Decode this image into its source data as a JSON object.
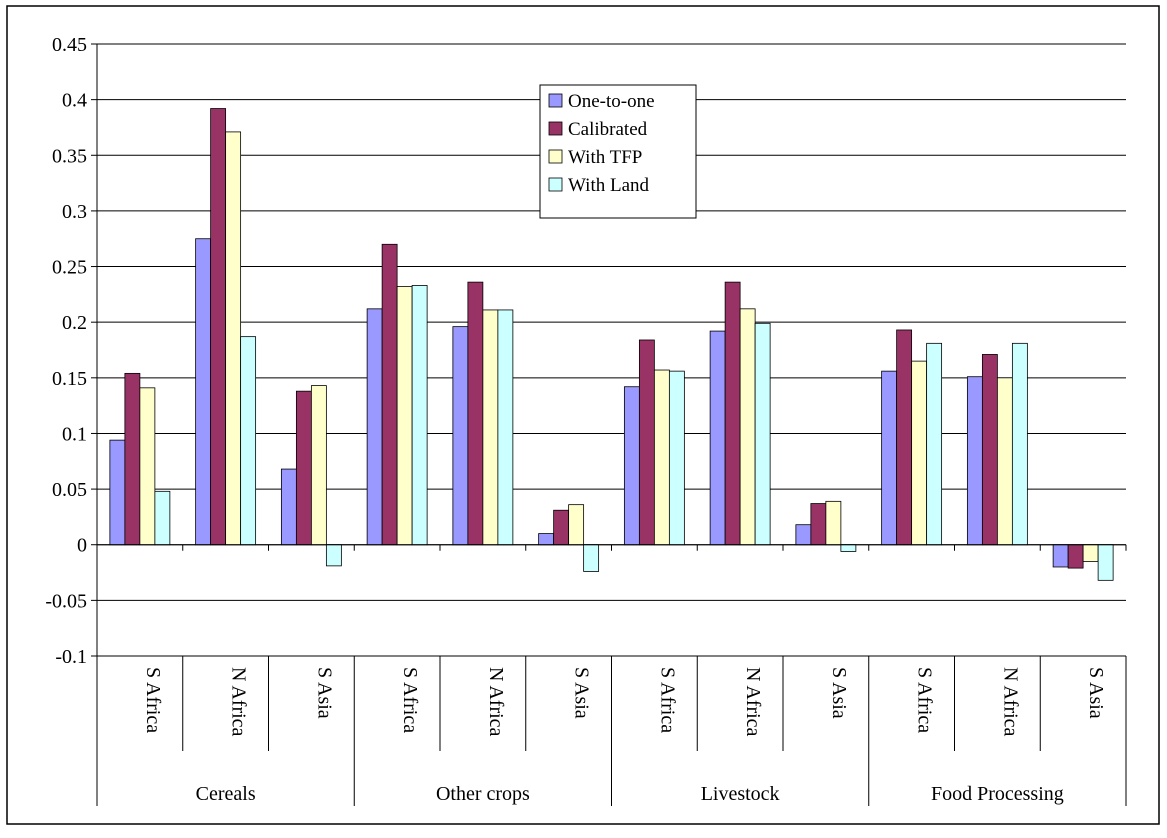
{
  "chart_data": {
    "type": "bar",
    "title": "",
    "xlabel": "",
    "ylabel": "",
    "ylim": [
      -0.1,
      0.45
    ],
    "yticks": [
      -0.1,
      -0.05,
      0,
      0.05,
      0.1,
      0.15,
      0.2,
      0.25,
      0.3,
      0.35,
      0.4,
      0.45
    ],
    "ytick_labels": [
      "-0.1",
      "-0.05",
      "0",
      "0.05",
      "0.1",
      "0.15",
      "0.2",
      "0.25",
      "0.3",
      "0.35",
      "0.4",
      "0.45"
    ],
    "grid": true,
    "legend_position": "top-center",
    "groups": [
      {
        "label": "Cereals",
        "categories": [
          "S Africa",
          "N Africa",
          "S Asia"
        ]
      },
      {
        "label": "Other crops",
        "categories": [
          "S Africa",
          "N Africa",
          "S Asia"
        ]
      },
      {
        "label": "Livestock",
        "categories": [
          "S Africa",
          "N Africa",
          "S Asia"
        ]
      },
      {
        "label": "Food Processing",
        "categories": [
          "S Africa",
          "N Africa",
          "S Asia"
        ]
      }
    ],
    "series": [
      {
        "name": "One-to-one",
        "color": "#9999ff",
        "values": [
          0.094,
          0.275,
          0.068,
          0.212,
          0.196,
          0.01,
          0.142,
          0.192,
          0.018,
          0.156,
          0.151,
          -0.02
        ]
      },
      {
        "name": "Calibrated",
        "color": "#993366",
        "values": [
          0.154,
          0.392,
          0.138,
          0.27,
          0.236,
          0.031,
          0.184,
          0.236,
          0.037,
          0.193,
          0.171,
          -0.021
        ]
      },
      {
        "name": "With TFP",
        "color": "#ffffcc",
        "values": [
          0.141,
          0.371,
          0.143,
          0.232,
          0.211,
          0.036,
          0.157,
          0.212,
          0.039,
          0.165,
          0.15,
          -0.015
        ]
      },
      {
        "name": "With Land",
        "color": "#ccffff",
        "values": [
          0.048,
          0.187,
          -0.019,
          0.233,
          0.211,
          -0.024,
          0.156,
          0.199,
          -0.006,
          0.181,
          0.181,
          -0.032
        ]
      }
    ]
  }
}
